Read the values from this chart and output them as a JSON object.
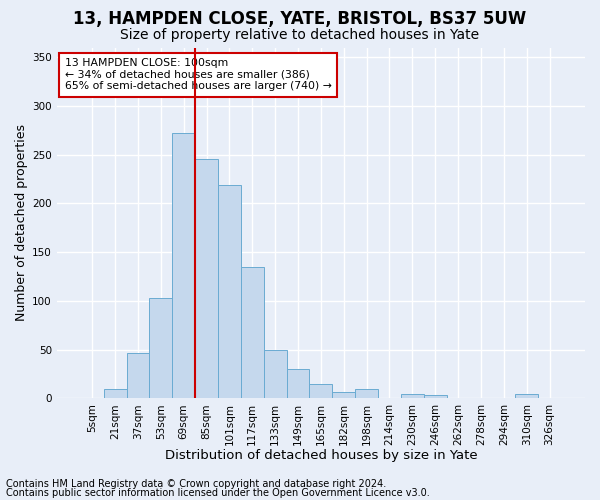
{
  "title1": "13, HAMPDEN CLOSE, YATE, BRISTOL, BS37 5UW",
  "title2": "Size of property relative to detached houses in Yate",
  "xlabel": "Distribution of detached houses by size in Yate",
  "ylabel": "Number of detached properties",
  "footnote1": "Contains HM Land Registry data © Crown copyright and database right 2024.",
  "footnote2": "Contains public sector information licensed under the Open Government Licence v3.0.",
  "bar_labels": [
    "5sqm",
    "21sqm",
    "37sqm",
    "53sqm",
    "69sqm",
    "85sqm",
    "101sqm",
    "117sqm",
    "133sqm",
    "149sqm",
    "165sqm",
    "182sqm",
    "198sqm",
    "214sqm",
    "230sqm",
    "246sqm",
    "262sqm",
    "278sqm",
    "294sqm",
    "310sqm",
    "326sqm"
  ],
  "bar_values": [
    0,
    10,
    47,
    103,
    272,
    246,
    219,
    135,
    50,
    30,
    15,
    7,
    10,
    0,
    4,
    3,
    0,
    0,
    0,
    4,
    0
  ],
  "bar_color": "#c5d8ed",
  "bar_edgecolor": "#6aabd2",
  "ylim": [
    0,
    360
  ],
  "yticks": [
    0,
    50,
    100,
    150,
    200,
    250,
    300,
    350
  ],
  "property_line_x": 4.5,
  "property_line_color": "#cc0000",
  "annotation_text": "13 HAMPDEN CLOSE: 100sqm\n← 34% of detached houses are smaller (386)\n65% of semi-detached houses are larger (740) →",
  "annotation_box_color": "#ffffff",
  "annotation_box_edgecolor": "#cc0000",
  "background_color": "#e8eef8",
  "plot_bg_color": "#e8eef8",
  "grid_color": "#ffffff",
  "title1_fontsize": 12,
  "title2_fontsize": 10,
  "xlabel_fontsize": 9.5,
  "ylabel_fontsize": 9,
  "tick_fontsize": 7.5,
  "footnote_fontsize": 7
}
